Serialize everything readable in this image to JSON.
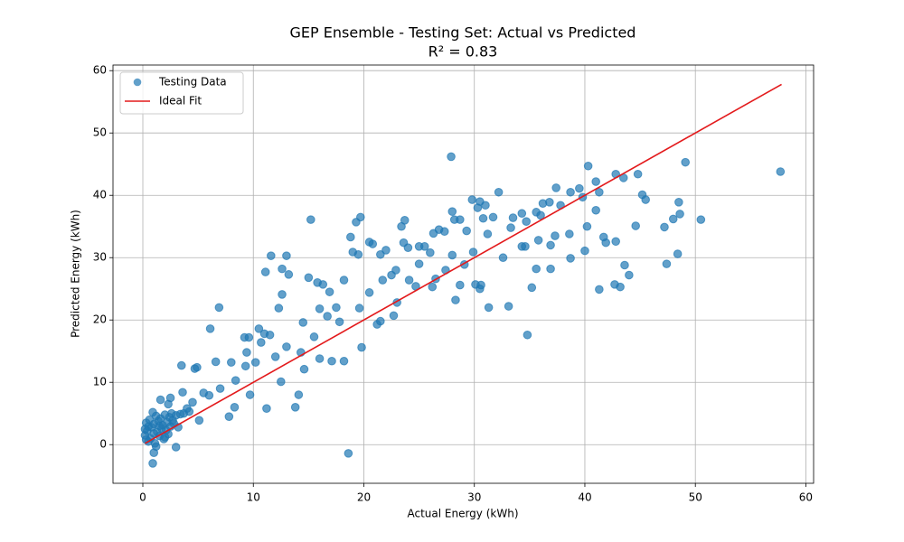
{
  "chart_data": {
    "type": "scatter",
    "title": "GEP Ensemble - Testing Set: Actual vs Predicted",
    "subtitle": "R² = 0.83",
    "x_label": "Actual Energy (kWh)",
    "y_label": "Predicted Energy (kWh)",
    "xlim": [
      -2.7,
      60.7
    ],
    "ylim": [
      -6.2,
      60.9
    ],
    "xticks": [
      0,
      10,
      20,
      30,
      40,
      50,
      60
    ],
    "yticks": [
      0,
      10,
      20,
      30,
      40,
      50,
      60
    ],
    "grid": true,
    "legend": "upper-left",
    "series": [
      {
        "name": "Testing Data",
        "type": "scatter",
        "color": "#1f77b4",
        "x": [
          0.2,
          0.3,
          0.4,
          0.5,
          0.6,
          0.7,
          0.8,
          0.9,
          1.0,
          1.1,
          1.2,
          1.3,
          1.4,
          1.5,
          1.6,
          1.7,
          1.8,
          1.9,
          2.0,
          2.1,
          2.2,
          2.3,
          2.4,
          2.5,
          2.6,
          2.8,
          3.0,
          3.2,
          3.4,
          0.3,
          0.5,
          1.0,
          1.5,
          2.0,
          0.2,
          1.2,
          2.7,
          3.7,
          2.3,
          4.2,
          3.5,
          4.7,
          4.9,
          6.1,
          6.9,
          6.6,
          8.0,
          9.2,
          9.6,
          10.5,
          11.0,
          11.5,
          11.1,
          11.6,
          12.3,
          12.6,
          13.2,
          13.0,
          12.6,
          15.2,
          15.0,
          15.8,
          16.3,
          14.5,
          16.0,
          16.9,
          17.5,
          18.2,
          18.8,
          19.3,
          19.7,
          19.5,
          19.0,
          20.5,
          20.8,
          21.5,
          22.0,
          22.5,
          23.4,
          23.7,
          23.6,
          24.0,
          25.0,
          25.5,
          26.0,
          26.3,
          26.8,
          27.3,
          27.9,
          28.0,
          28.2,
          28.7,
          29.3,
          29.8,
          30.3,
          30.5,
          31.0,
          30.8,
          31.7,
          32.2,
          33.5,
          34.3,
          34.7,
          35.6,
          36.2,
          36.8,
          37.4,
          38.7,
          39.5,
          40.3,
          41.0,
          41.3,
          42.8,
          43.5,
          44.8,
          45.2,
          45.5,
          49.1,
          57.7,
          48.5,
          48.6,
          48.0,
          50.5,
          47.2,
          47.4,
          48.4,
          44.6,
          43.6,
          44.0,
          42.7,
          43.2,
          41.3,
          42.8,
          41.7,
          41.9,
          38.7,
          38.6,
          37.3,
          36.9,
          35.6,
          36.9,
          35.8,
          34.8,
          35.2,
          34.3,
          34.6,
          33.1,
          31.3,
          30.5,
          30.1,
          30.6,
          28.3,
          28.7,
          27.4,
          26.2,
          24.7,
          24.1,
          23.0,
          22.7,
          21.2,
          21.5,
          19.8,
          18.6,
          18.2,
          17.1,
          16.0,
          13.8,
          14.1,
          11.2,
          14.6,
          13.0,
          12.0,
          10.2,
          9.7,
          8.3,
          7.8,
          5.1,
          3.0,
          0.9,
          1.0,
          8.4,
          7.0,
          6.0,
          5.5,
          4.5,
          4.0,
          3.6,
          2.5,
          1.6,
          9.4,
          9.3,
          10.7,
          12.5,
          14.3,
          15.5,
          16.7,
          17.8,
          19.6,
          20.5,
          21.7,
          22.9,
          25.0,
          26.5,
          28.0,
          29.1,
          29.9,
          31.2,
          32.6,
          33.3,
          36.0,
          37.8,
          39.8,
          40.0,
          40.2,
          41.0
        ],
        "values": [
          1.5,
          3.5,
          2.2,
          0.5,
          4.0,
          1.0,
          2.8,
          5.2,
          3.3,
          0.2,
          4.6,
          2.0,
          3.8,
          1.4,
          4.2,
          2.6,
          3.1,
          0.9,
          4.8,
          2.3,
          3.6,
          1.7,
          4.4,
          2.9,
          5.0,
          3.4,
          4.7,
          2.8,
          4.9,
          0.8,
          2.9,
          1.8,
          3.0,
          1.2,
          2.5,
          -0.3,
          3.9,
          5.0,
          6.5,
          5.3,
          12.7,
          12.2,
          12.4,
          18.6,
          22.0,
          13.3,
          13.2,
          17.2,
          17.2,
          18.6,
          17.8,
          17.6,
          27.7,
          30.3,
          21.9,
          28.2,
          27.3,
          30.3,
          24.1,
          36.1,
          26.8,
          26.0,
          25.7,
          19.6,
          21.8,
          24.5,
          22.0,
          26.4,
          33.3,
          35.7,
          36.5,
          30.5,
          30.9,
          32.5,
          32.2,
          30.5,
          31.2,
          27.2,
          35.0,
          36.0,
          32.4,
          31.6,
          31.8,
          31.8,
          30.8,
          33.9,
          34.5,
          34.2,
          46.2,
          37.4,
          36.1,
          36.1,
          34.3,
          39.3,
          38.0,
          39.0,
          38.4,
          36.3,
          36.5,
          40.5,
          36.4,
          37.1,
          35.8,
          37.3,
          38.7,
          38.9,
          41.2,
          40.5,
          41.1,
          44.7,
          42.2,
          40.5,
          43.4,
          42.8,
          43.4,
          40.1,
          39.3,
          45.3,
          43.8,
          38.9,
          37.0,
          36.2,
          36.1,
          34.9,
          29.0,
          30.6,
          35.1,
          28.8,
          27.2,
          25.7,
          25.3,
          24.9,
          32.6,
          33.3,
          32.4,
          29.9,
          33.8,
          33.5,
          28.2,
          28.2,
          32.0,
          32.8,
          17.6,
          25.2,
          31.8,
          31.8,
          22.2,
          22.0,
          25.0,
          25.7,
          25.6,
          23.2,
          25.6,
          28.0,
          25.3,
          25.4,
          26.4,
          22.8,
          20.7,
          19.3,
          19.8,
          15.6,
          -1.4,
          13.4,
          13.4,
          13.8,
          6.0,
          8.0,
          5.8,
          12.1,
          15.7,
          14.1,
          13.2,
          8.0,
          6.0,
          4.5,
          3.9,
          -0.4,
          -3.0,
          -1.3,
          10.3,
          9.0,
          7.9,
          8.3,
          6.8,
          5.8,
          8.4,
          7.5,
          7.2,
          14.8,
          12.6,
          16.4,
          10.1,
          14.8,
          17.3,
          20.6,
          19.7,
          21.9,
          24.4,
          26.4,
          28.0,
          29.0,
          26.6,
          30.4,
          28.9,
          30.9,
          33.8,
          30.0,
          34.8,
          36.8,
          38.4,
          39.7,
          31.1,
          35.0,
          37.6
        ]
      },
      {
        "name": "Ideal Fit",
        "type": "line",
        "color": "#e31a1c",
        "x": [
          0.2,
          57.8
        ],
        "values": [
          0.2,
          57.8
        ]
      }
    ]
  }
}
